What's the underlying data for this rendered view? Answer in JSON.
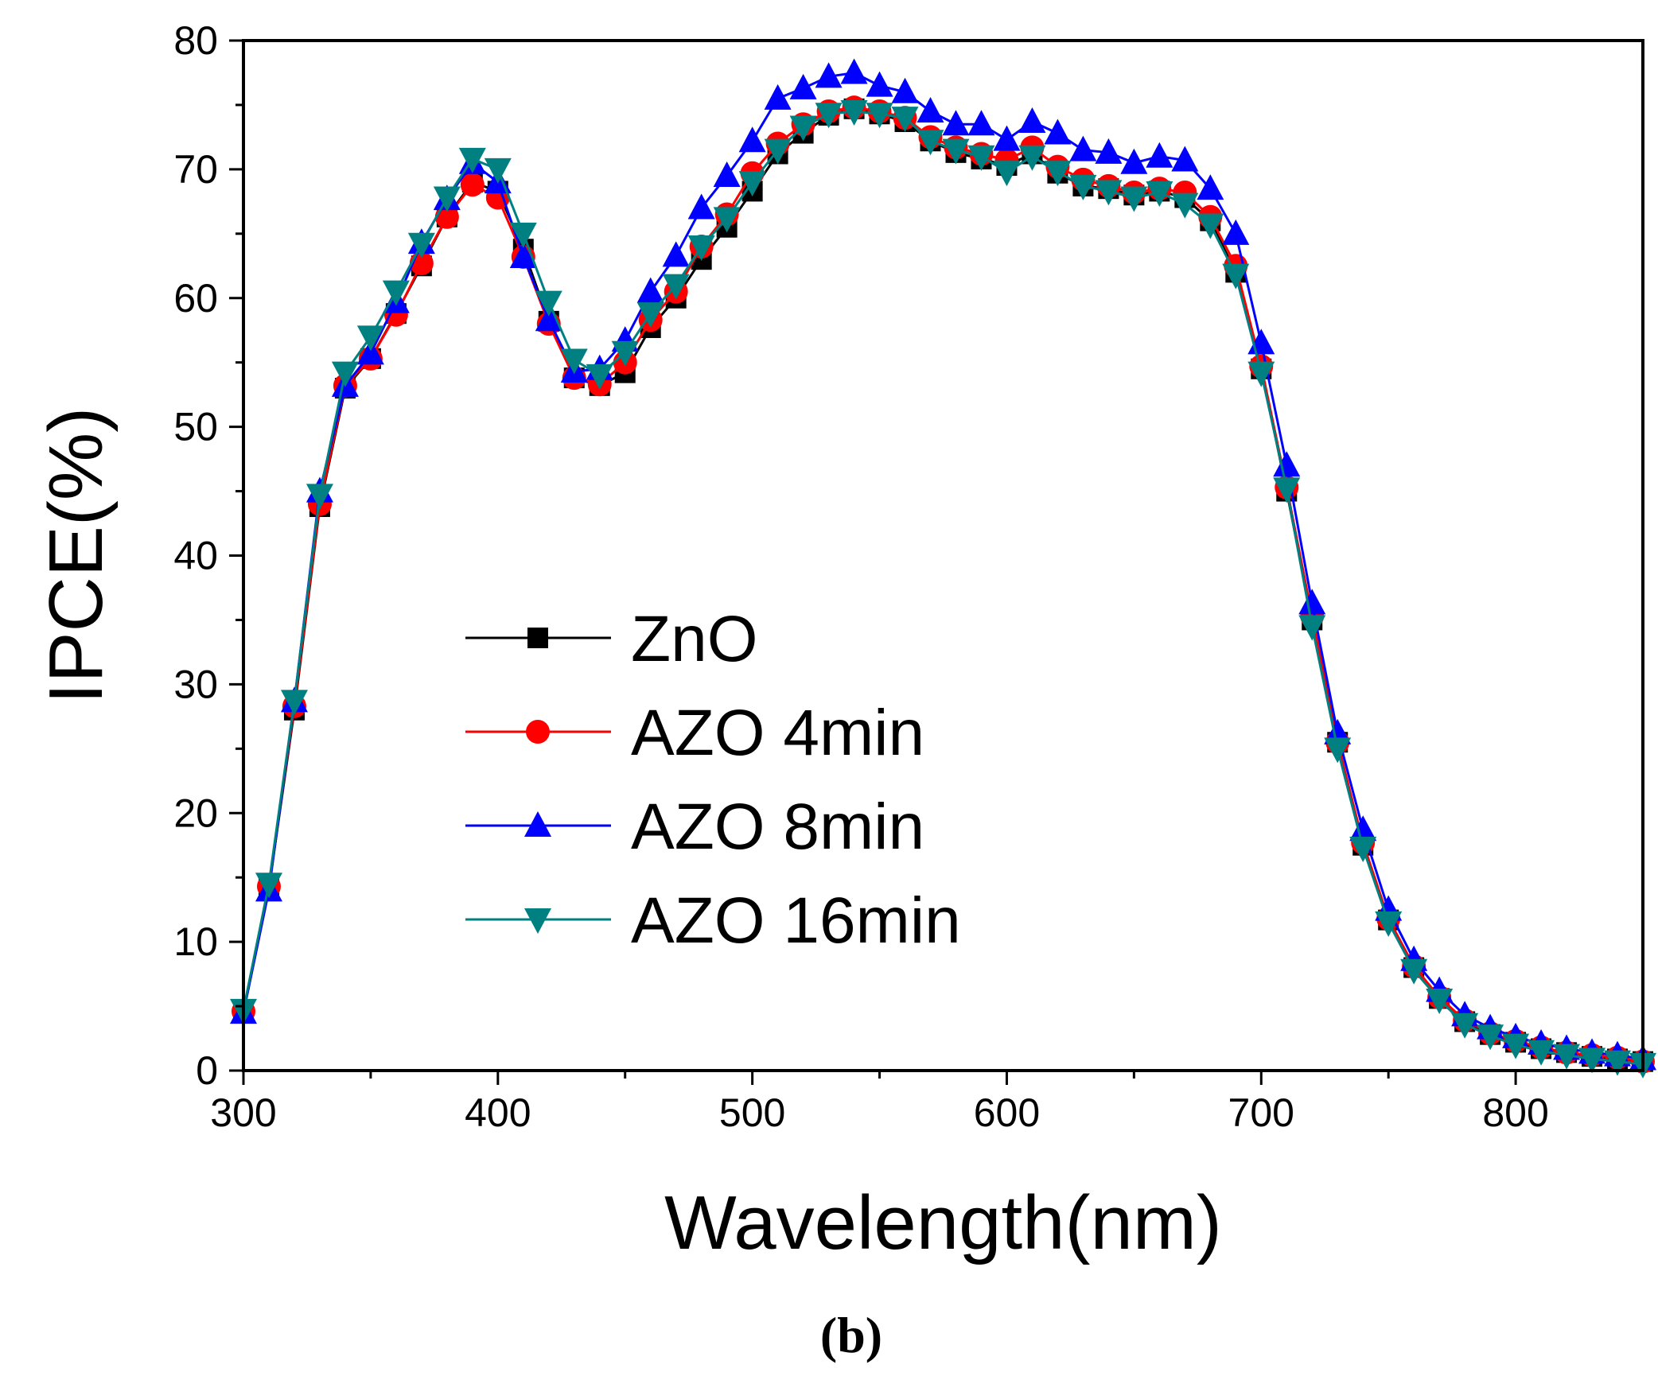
{
  "chart_data": {
    "type": "line",
    "title": "",
    "caption": "(b)",
    "xlabel": "Wavelength(nm)",
    "ylabel": "IPCE(%)",
    "xlim": [
      300,
      850
    ],
    "ylim": [
      0,
      80
    ],
    "x_major_ticks": [
      300,
      400,
      500,
      600,
      700,
      800
    ],
    "x_tick_labels": [
      "300",
      "400",
      "500",
      "600",
      "700",
      "800"
    ],
    "y_major_ticks": [
      0,
      10,
      20,
      30,
      40,
      50,
      60,
      70,
      80
    ],
    "y_tick_labels": [
      "0",
      "10",
      "20",
      "30",
      "40",
      "50",
      "60",
      "70",
      "80"
    ],
    "grid": false,
    "legend_position": "center-left",
    "x": [
      300,
      310,
      320,
      330,
      340,
      350,
      360,
      370,
      380,
      390,
      400,
      410,
      420,
      430,
      440,
      450,
      460,
      470,
      480,
      490,
      500,
      510,
      520,
      530,
      540,
      550,
      560,
      570,
      580,
      590,
      600,
      610,
      620,
      630,
      640,
      650,
      660,
      670,
      680,
      690,
      700,
      710,
      720,
      730,
      740,
      750,
      760,
      770,
      780,
      790,
      800,
      810,
      820,
      830,
      840,
      850
    ],
    "series": [
      {
        "name": "ZnO",
        "color": "#000000",
        "marker": "square",
        "values": [
          4.6,
          14.2,
          28,
          43.8,
          53,
          55.3,
          58.8,
          62.5,
          66.3,
          69,
          68.3,
          63.8,
          58.2,
          53.8,
          53.2,
          54.2,
          57.7,
          60,
          63,
          65.5,
          68.3,
          71.2,
          72.8,
          74.2,
          74.7,
          74.3,
          73.7,
          72.2,
          71.3,
          70.8,
          70.3,
          71.2,
          69.7,
          68.7,
          68.5,
          68,
          68.3,
          67.8,
          66,
          62,
          54.5,
          45,
          35,
          25.5,
          17.5,
          11.7,
          8,
          5.6,
          3.8,
          2.8,
          2.2,
          1.7,
          1.4,
          1.1,
          0.9,
          0.7
        ]
      },
      {
        "name": "AZO 4min",
        "color": "#ff0000",
        "marker": "circle",
        "values": [
          4.6,
          14.3,
          28.3,
          44,
          53.2,
          55.3,
          58.7,
          62.7,
          66.3,
          68.8,
          67.8,
          63.2,
          58,
          53.8,
          53.3,
          55,
          58.3,
          60.5,
          64,
          66.5,
          69.7,
          72,
          73.5,
          74.5,
          74.8,
          74.5,
          74,
          72.5,
          71.7,
          71.2,
          70.7,
          71.7,
          70.2,
          69.2,
          68.7,
          68.2,
          68.5,
          68.2,
          66.3,
          62.5,
          54.7,
          45.3,
          35.3,
          25.5,
          17.7,
          11.8,
          8.1,
          5.7,
          3.9,
          2.9,
          2.3,
          1.8,
          1.4,
          1.2,
          1,
          0.7
        ]
      },
      {
        "name": "AZO 8min",
        "color": "#0000ff",
        "marker": "triangle-up",
        "values": [
          4.5,
          14,
          28.7,
          45,
          53.2,
          55.7,
          59.7,
          64.3,
          67.7,
          70.5,
          69,
          63.2,
          58.3,
          54.3,
          54.5,
          56.7,
          60.5,
          63.3,
          67,
          69.5,
          72.2,
          75.5,
          76.3,
          77.2,
          77.5,
          76.5,
          76,
          74.5,
          73.5,
          73.5,
          72.3,
          73.7,
          72.8,
          71.5,
          71.3,
          70.5,
          71,
          70.7,
          68.5,
          65,
          56.5,
          47,
          36.3,
          26.2,
          18.7,
          12.5,
          8.6,
          6.2,
          4.3,
          3.3,
          2.6,
          2.1,
          1.7,
          1.4,
          1.2,
          0.9
        ]
      },
      {
        "name": "AZO 16min",
        "color": "#008080",
        "marker": "triangle-down",
        "values": [
          4.7,
          14.5,
          28.7,
          44.7,
          54.2,
          57,
          60.5,
          64.2,
          67.8,
          70.8,
          70,
          65,
          59.7,
          55.2,
          54,
          55.8,
          58.8,
          61,
          64,
          66.2,
          69,
          71.5,
          73.3,
          74.3,
          74.5,
          74.3,
          74,
          72.2,
          71.5,
          71,
          69.8,
          71,
          69.8,
          68.7,
          68.3,
          67.8,
          68.2,
          67.3,
          65.7,
          61.8,
          54.2,
          45.2,
          34.5,
          25,
          17.3,
          11.5,
          7.8,
          5.5,
          3.6,
          2.7,
          2,
          1.5,
          1.2,
          0.9,
          0.7,
          0.5
        ]
      }
    ]
  }
}
